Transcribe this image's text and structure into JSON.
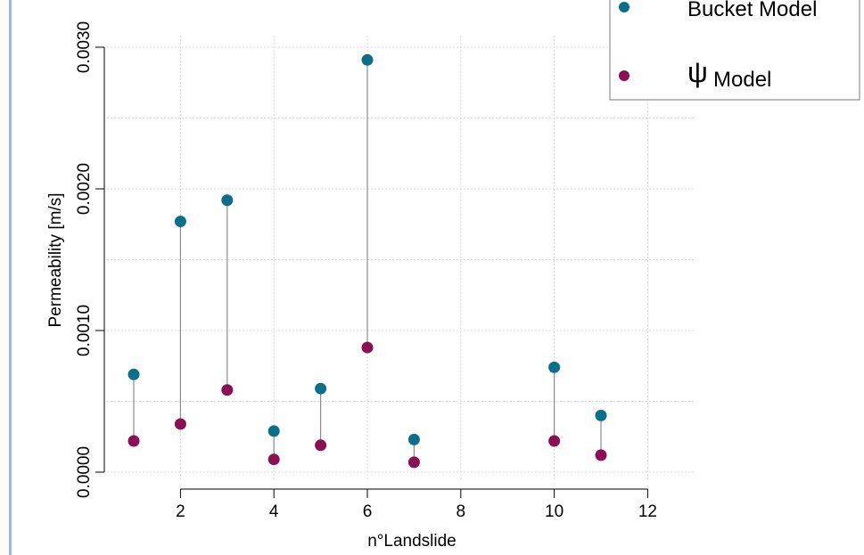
{
  "chart_data": {
    "type": "scatter",
    "title": "",
    "xlabel": "n°Landslide",
    "ylabel": "Permeability [m/s]",
    "xlim": [
      0.5,
      12
    ],
    "ylim": [
      0.0,
      0.003
    ],
    "xticks": [
      2,
      4,
      6,
      8,
      10,
      12
    ],
    "xtick_labels": [
      "2",
      "4",
      "6",
      "8",
      "10",
      "12"
    ],
    "yticks": [
      0.0,
      0.001,
      0.002,
      0.003
    ],
    "ytick_labels": [
      "0.0000",
      "0.0010",
      "0.0020",
      "0.0030"
    ],
    "grid": true,
    "legend_position": "top-right",
    "x": [
      1,
      2,
      3,
      4,
      5,
      6,
      7,
      10,
      11
    ],
    "series": [
      {
        "name": "Bucket Model",
        "color": "#0b6e8a",
        "values": [
          0.00069,
          0.00177,
          0.00192,
          0.00029,
          0.00059,
          0.00291,
          0.00023,
          0.00074,
          0.0004
        ]
      },
      {
        "name": "Model",
        "name_prefix": "ψ",
        "color": "#8c0f55",
        "values": [
          0.00022,
          0.00034,
          0.00058,
          9e-05,
          0.00019,
          0.00088,
          7e-05,
          0.00022,
          0.00012
        ]
      }
    ],
    "connector_color": "#8c8c8c"
  }
}
